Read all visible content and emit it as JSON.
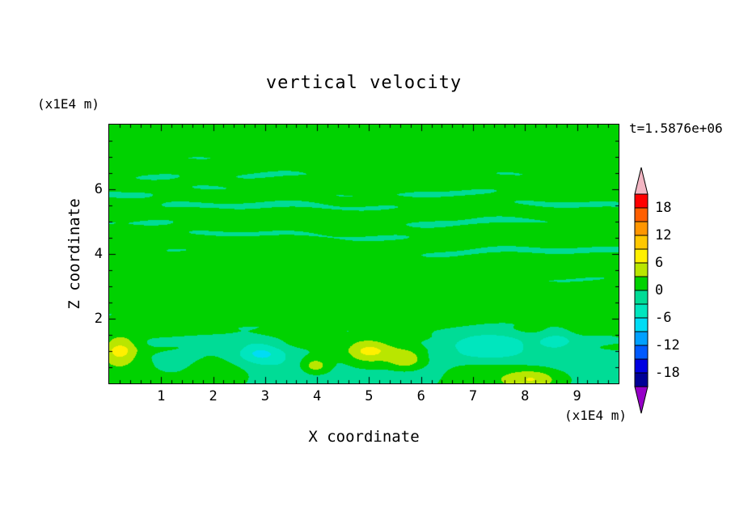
{
  "title": "vertical velocity",
  "annotations": {
    "time_label": "t=1.5876e+06"
  },
  "axes": {
    "x": {
      "label": "X coordinate",
      "unit": "(x1E4 m)",
      "min": 0,
      "max": 9.8,
      "major_ticks": [
        1,
        2,
        3,
        4,
        5,
        6,
        7,
        8,
        9
      ],
      "minor_step": 0.2
    },
    "z": {
      "label": "Z coordinate",
      "unit": "(x1E4 m)",
      "min": 0,
      "max": 8,
      "major_ticks": [
        2,
        4,
        6
      ],
      "minor_step": 0.5
    }
  },
  "colorbar": {
    "tick_labels": [
      "18",
      "12",
      "6",
      "0",
      "-6",
      "-12",
      "-18"
    ],
    "tick_values": [
      18,
      12,
      6,
      0,
      -6,
      -12,
      -18
    ]
  },
  "chart_data": {
    "type": "heatmap",
    "title": "vertical velocity",
    "time_annotation": "t=1.5876e+06",
    "xlabel": "X coordinate (x1E4 m)",
    "ylabel": "Z coordinate (x1E4 m)",
    "x_range": [
      0,
      9.8
    ],
    "z_range": [
      0,
      8
    ],
    "contour_levels": {
      "min": -21,
      "max": 21,
      "step": 3
    },
    "colorbar_ticks": [
      18,
      12,
      6,
      0,
      -6,
      -12,
      -18
    ],
    "palette_low_to_high": [
      "#000096",
      "#0000e1",
      "#005aff",
      "#00a0ff",
      "#00dcf5",
      "#00e6be",
      "#00dc96",
      "#00d200",
      "#b9e600",
      "#fff000",
      "#ffc800",
      "#ff9600",
      "#ff5f00",
      "#ff0000"
    ],
    "out_of_range": {
      "over": "#f2b6c3",
      "under": "#9600c8"
    },
    "field_description": "Vertical velocity field: thin near-zero horizontal streak bands (values alternating between the 0..3 green band and the -3..0 spring-green band) fill most of the domain above z~2; below z~2 larger amplitude cells appear with localized positive (yellow, ~+6 to +7) and negative (cyan, ~-5 to -7) extrema.",
    "background_band": [
      0,
      3
    ],
    "streak_band": [
      -3,
      0
    ],
    "extrema_features": [
      {
        "x": 0.2,
        "z": 1.05,
        "peak": 7.2,
        "rx": 0.35,
        "rz": 0.45
      },
      {
        "x": 3.95,
        "z": 0.55,
        "peak": 6.2,
        "rx": 0.3,
        "rz": 0.3
      },
      {
        "x": 5.0,
        "z": 1.0,
        "peak": 7.0,
        "rx": 0.45,
        "rz": 0.35
      },
      {
        "x": 5.7,
        "z": 0.75,
        "peak": 6.3,
        "rx": 0.35,
        "rz": 0.3
      },
      {
        "x": 8.15,
        "z": 0.15,
        "peak": 6.0,
        "rx": 0.5,
        "rz": 0.3
      },
      {
        "x": 2.9,
        "z": 0.95,
        "peak": -6.5,
        "rx": 0.45,
        "rz": 0.35
      },
      {
        "x": 7.3,
        "z": 1.1,
        "peak": -5.5,
        "rx": 0.8,
        "rz": 0.45
      },
      {
        "x": 8.6,
        "z": 1.35,
        "peak": -4.5,
        "rx": 0.35,
        "rz": 0.3
      }
    ]
  }
}
